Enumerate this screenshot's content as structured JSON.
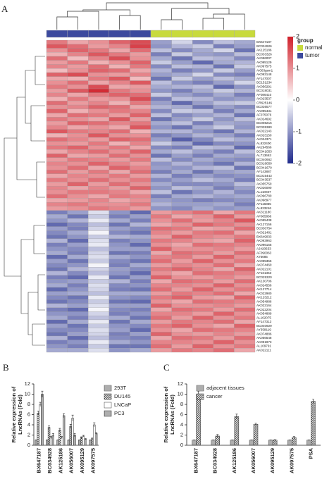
{
  "chart_data": [
    {
      "type": "heatmap",
      "panel_label": "A",
      "rows": [
        "BX647187",
        "BC034926",
        "AK125186",
        "BC033326",
        "AK056007",
        "AK095129",
        "AK097575",
        "AI003gsm1",
        "AK093148",
        "AF147007",
        "BC151234",
        "AK056291",
        "BC018031",
        "AF086410",
        "AK023537",
        "CR625146",
        "BC036577",
        "AK095431",
        "AF075076",
        "AK024692",
        "BC008215",
        "BC035380",
        "AK022143",
        "AK023150",
        "AK024371",
        "AL832400",
        "AK294566",
        "BC041053",
        "AL713663",
        "BC040662",
        "BC018050",
        "BC041670",
        "AF143887",
        "BC015443",
        "BC043537",
        "AK055750",
        "AK026090",
        "AL110037",
        "AK096780",
        "AK098977",
        "AF116865",
        "AL833246",
        "AK311180",
        "AF085866",
        "AK055438",
        "AK127156",
        "BC030754",
        "AK021481",
        "BX649033",
        "AK093963",
        "AK096155",
        "AJ420553",
        "AF090063",
        "X75685",
        "AK095356",
        "AK074460",
        "AK022101",
        "AF161353",
        "BC025320",
        "AK130706",
        "AK024556",
        "AK127714",
        "AK022980",
        "AK123212",
        "AK054986",
        "AK022164",
        "AK022204",
        "AK054889",
        "AL162075",
        "AF147313",
        "BC040929",
        "AY358119",
        "AK074886",
        "AK056548",
        "AK091973",
        "AL109791",
        "AK022111"
      ],
      "column_groups": [
        "tumor",
        "tumor",
        "tumor",
        "tumor",
        "tumor",
        "normal",
        "normal",
        "normal",
        "normal",
        "normal"
      ],
      "values": [
        [
          1.2,
          0.8,
          1.0,
          1.4,
          1.6,
          -0.9,
          -0.4,
          -1.1,
          -0.6,
          -0.8
        ],
        [
          1.5,
          1.3,
          0.9,
          1.1,
          1.7,
          -1.0,
          -0.7,
          -0.5,
          -1.2,
          -0.9
        ],
        [
          1.0,
          1.4,
          1.2,
          0.8,
          1.3,
          -0.6,
          -1.1,
          -0.8,
          -0.4,
          -1.3
        ],
        [
          0.7,
          1.1,
          1.5,
          1.2,
          0.9,
          -1.2,
          -0.5,
          -0.9,
          -1.0,
          -0.6
        ],
        [
          1.3,
          0.6,
          1.1,
          1.6,
          1.0,
          -0.8,
          -1.3,
          -0.6,
          -0.7,
          -1.1
        ],
        [
          0.9,
          1.2,
          0.7,
          1.0,
          1.4,
          -0.5,
          -0.9,
          -1.4,
          -0.8,
          -0.7
        ],
        [
          1.1,
          0.9,
          1.3,
          0.7,
          1.2,
          -1.1,
          -0.6,
          -0.7,
          -1.3,
          -0.5
        ],
        [
          0.6,
          1.0,
          1.4,
          1.3,
          0.8,
          -0.7,
          -1.2,
          -1.0,
          -0.5,
          -0.9
        ],
        [
          1.4,
          1.6,
          1.0,
          0.9,
          1.1,
          -0.9,
          -0.8,
          -0.4,
          -1.1,
          -1.2
        ],
        [
          0.8,
          0.7,
          1.2,
          1.5,
          0.6,
          -1.3,
          -0.5,
          -0.9,
          -0.6,
          -0.8
        ],
        [
          1.0,
          1.3,
          0.8,
          1.1,
          1.5,
          -0.6,
          -1.0,
          -1.2,
          -0.9,
          -0.4
        ],
        [
          1.2,
          1.0,
          1.6,
          0.8,
          0.9,
          -0.8,
          -0.7,
          -0.6,
          -1.4,
          -1.0
        ],
        [
          0.9,
          1.5,
          1.9,
          1.2,
          1.0,
          -1.0,
          -1.2,
          -0.8,
          -0.5,
          -0.7
        ],
        [
          1.1,
          0.8,
          1.2,
          1.4,
          1.3,
          -0.5,
          -0.9,
          -1.1,
          -0.8,
          -1.2
        ],
        [
          0.7,
          1.2,
          0.9,
          1.0,
          1.6,
          -1.2,
          -0.6,
          -0.7,
          -1.0,
          -0.9
        ],
        [
          1.3,
          0.9,
          1.1,
          0.7,
          1.2,
          -0.9,
          -1.4,
          -0.9,
          -0.6,
          -0.5
        ],
        [
          1.0,
          1.1,
          1.4,
          1.3,
          0.8,
          -0.7,
          -0.8,
          -1.3,
          -0.9,
          -1.1
        ],
        [
          1.4,
          0.7,
          1.0,
          1.2,
          1.1,
          -1.1,
          -0.5,
          -0.6,
          -1.2,
          -0.8
        ],
        [
          0.8,
          1.3,
          1.2,
          0.9,
          1.4,
          -0.6,
          -1.1,
          -0.9,
          -0.7,
          -1.3
        ],
        [
          1.2,
          1.0,
          0.8,
          1.5,
          0.9,
          -1.3,
          -0.9,
          -0.5,
          -1.0,
          -0.6
        ],
        [
          0.9,
          1.4,
          1.3,
          1.1,
          1.2,
          -0.8,
          -0.6,
          -1.2,
          -0.8,
          -0.9
        ],
        [
          1.1,
          0.8,
          1.0,
          0.8,
          1.5,
          -1.0,
          -1.3,
          -0.8,
          -0.5,
          -1.0
        ],
        [
          1.5,
          1.2,
          1.1,
          1.3,
          0.7,
          -0.7,
          -0.7,
          -1.0,
          -1.3,
          -0.7
        ],
        [
          0.7,
          1.0,
          1.5,
          1.0,
          1.0,
          -1.2,
          -1.0,
          -0.7,
          -0.9,
          -1.2
        ],
        [
          1.3,
          1.1,
          0.9,
          1.4,
          1.3,
          -0.9,
          -1.5,
          -1.1,
          -0.6,
          -0.8
        ],
        [
          1.0,
          0.9,
          1.2,
          0.7,
          1.1,
          -0.5,
          -0.8,
          -1.4,
          -1.1,
          -1.0
        ],
        [
          1.2,
          1.4,
          1.0,
          1.2,
          0.8,
          -1.1,
          -1.2,
          -0.6,
          -0.7,
          -1.4
        ],
        [
          0.8,
          1.1,
          1.3,
          1.0,
          1.4,
          -0.8,
          -0.6,
          -0.9,
          -1.2,
          -0.6
        ],
        [
          1.4,
          0.8,
          0.9,
          1.3,
          1.0,
          -1.3,
          -0.9,
          -1.2,
          -0.8,
          -0.9
        ],
        [
          0.9,
          1.2,
          1.1,
          0.9,
          1.2,
          -0.6,
          -1.1,
          -0.8,
          -1.0,
          -1.1
        ],
        [
          1.1,
          1.0,
          1.4,
          1.1,
          0.9,
          -1.0,
          -0.7,
          -1.0,
          -1.3,
          -0.7
        ],
        [
          1.0,
          1.3,
          0.8,
          1.4,
          1.1,
          -0.9,
          -1.0,
          -0.7,
          -0.6,
          -1.3
        ],
        [
          1.3,
          0.9,
          1.2,
          0.8,
          1.3,
          -1.2,
          -0.8,
          -1.3,
          -0.9,
          -0.8
        ],
        [
          0.8,
          1.1,
          1.0,
          1.2,
          0.9,
          -0.7,
          -1.2,
          -0.9,
          -1.1,
          -1.0
        ],
        [
          1.2,
          1.0,
          1.3,
          1.0,
          1.2,
          -1.1,
          -0.9,
          -0.6,
          -0.8,
          -1.2
        ],
        [
          0.9,
          1.4,
          0.9,
          1.3,
          1.0,
          -0.8,
          -1.1,
          -1.1,
          -1.0,
          -0.6
        ],
        [
          1.1,
          0.8,
          1.1,
          0.9,
          1.4,
          -1.0,
          -0.6,
          -0.8,
          -1.2,
          -0.9
        ],
        [
          1.0,
          1.2,
          1.2,
          1.1,
          0.8,
          -0.6,
          -1.3,
          -1.0,
          -0.7,
          -1.1
        ],
        [
          1.3,
          1.0,
          0.8,
          1.2,
          1.1,
          -1.2,
          -0.8,
          -0.7,
          -0.9,
          -0.8
        ],
        [
          0.8,
          0.9,
          1.1,
          0.8,
          1.0,
          -0.9,
          -1.0,
          -1.2,
          -1.1,
          -1.0
        ],
        [
          1.1,
          1.2,
          1.0,
          1.0,
          1.2,
          -0.7,
          -0.9,
          -0.9,
          -0.8,
          -1.2
        ],
        [
          0.9,
          1.0,
          1.2,
          1.1,
          0.9,
          -1.0,
          -1.1,
          -0.8,
          -1.0,
          -0.9
        ],
        [
          -1.2,
          -0.9,
          -0.3,
          -1.0,
          -1.4,
          0.9,
          1.1,
          1.3,
          0.8,
          1.2
        ],
        [
          -0.8,
          -1.3,
          -0.5,
          -1.2,
          -0.9,
          1.2,
          0.8,
          1.0,
          1.4,
          0.9
        ],
        [
          -1.0,
          -0.7,
          -0.2,
          -0.8,
          -1.2,
          1.0,
          1.3,
          0.9,
          1.1,
          1.5
        ],
        [
          -1.4,
          -1.1,
          -0.6,
          -1.3,
          -0.7,
          0.8,
          1.0,
          1.4,
          1.2,
          1.0
        ],
        [
          -0.9,
          -1.2,
          -0.4,
          -0.9,
          -1.1,
          1.3,
          1.2,
          0.8,
          0.9,
          1.3
        ],
        [
          -1.1,
          -0.8,
          -0.1,
          -1.1,
          -1.3,
          1.1,
          0.9,
          1.2,
          1.3,
          0.8
        ],
        [
          -1.3,
          -1.0,
          -0.5,
          -0.7,
          -0.8,
          0.9,
          1.4,
          1.1,
          1.0,
          1.2
        ],
        [
          -0.7,
          -1.4,
          -0.3,
          -1.2,
          -1.0,
          1.2,
          1.1,
          0.9,
          0.8,
          1.4
        ],
        [
          -1.2,
          -0.9,
          -0.2,
          -1.0,
          -1.4,
          1.0,
          0.8,
          1.3,
          1.2,
          1.1
        ],
        [
          -1.0,
          -1.1,
          -0.6,
          -0.9,
          -0.9,
          1.4,
          1.0,
          1.0,
          1.1,
          0.9
        ],
        [
          -0.8,
          -1.2,
          -0.4,
          -1.3,
          -1.2,
          0.8,
          1.3,
          1.2,
          0.9,
          1.3
        ],
        [
          -1.4,
          -0.8,
          -0.3,
          -0.8,
          -1.0,
          1.1,
          1.2,
          0.9,
          1.4,
          1.0
        ],
        [
          -0.9,
          -1.3,
          -0.5,
          -1.1,
          -1.3,
          1.3,
          0.9,
          1.4,
          1.0,
          1.2
        ],
        [
          -1.1,
          -1.0,
          -0.1,
          -1.2,
          -0.8,
          0.9,
          1.1,
          1.0,
          1.3,
          0.8
        ],
        [
          -1.3,
          -0.7,
          -0.4,
          -0.9,
          -1.1,
          1.2,
          1.4,
          1.1,
          0.8,
          1.4
        ],
        [
          -0.7,
          -1.1,
          -0.6,
          -1.0,
          -1.4,
          1.0,
          0.8,
          1.3,
          1.2,
          1.1
        ],
        [
          -1.2,
          -1.4,
          -0.2,
          -1.3,
          -0.9,
          1.4,
          1.0,
          0.9,
          1.1,
          0.9
        ],
        [
          -1.0,
          -0.9,
          -0.5,
          -0.7,
          -1.2,
          0.8,
          1.3,
          1.2,
          0.9,
          1.3
        ],
        [
          -0.8,
          -1.2,
          -0.3,
          -1.1,
          -1.0,
          1.1,
          1.1,
          1.0,
          1.4,
          1.0
        ],
        [
          -1.4,
          -1.0,
          -0.4,
          -1.2,
          -1.3,
          1.3,
          0.9,
          1.4,
          1.0,
          1.2
        ],
        [
          -0.9,
          -0.8,
          -0.6,
          -0.8,
          -0.8,
          0.9,
          1.2,
          1.1,
          1.3,
          0.8
        ],
        [
          -1.1,
          -1.3,
          -0.2,
          -1.0,
          -1.1,
          1.2,
          1.4,
          0.9,
          0.8,
          1.4
        ],
        [
          -1.3,
          -1.1,
          -0.5,
          -1.3,
          -1.4,
          1.0,
          0.8,
          1.3,
          1.2,
          1.1
        ],
        [
          -0.7,
          -0.9,
          -0.3,
          -0.9,
          -0.9,
          1.4,
          1.0,
          1.0,
          1.1,
          0.9
        ],
        [
          -1.2,
          -1.4,
          -0.1,
          -1.1,
          -1.2,
          0.8,
          1.3,
          1.2,
          0.9,
          1.3
        ],
        [
          -1.0,
          -1.0,
          -0.4,
          -1.2,
          -1.0,
          1.1,
          1.1,
          0.9,
          1.4,
          1.0
        ],
        [
          -0.8,
          -1.2,
          -0.6,
          -0.8,
          -1.3,
          1.3,
          0.9,
          1.4,
          1.0,
          1.2
        ],
        [
          -1.4,
          -0.8,
          -0.2,
          -1.3,
          -0.8,
          0.9,
          1.2,
          1.1,
          1.3,
          0.8
        ],
        [
          -0.9,
          -1.3,
          -0.5,
          -1.0,
          -1.1,
          1.2,
          1.4,
          1.0,
          0.8,
          1.4
        ],
        [
          -1.1,
          -1.1,
          -0.3,
          -0.9,
          -1.4,
          1.0,
          0.8,
          1.3,
          1.2,
          1.1
        ],
        [
          -1.3,
          -0.9,
          -0.4,
          -1.2,
          -0.9,
          1.4,
          1.0,
          0.9,
          1.1,
          0.9
        ],
        [
          -0.7,
          -1.4,
          -0.6,
          -1.1,
          -1.2,
          0.8,
          1.3,
          1.2,
          0.9,
          1.3
        ],
        [
          -1.2,
          -1.0,
          -0.2,
          -0.8,
          -1.0,
          1.1,
          1.1,
          1.0,
          1.4,
          1.0
        ],
        [
          -1.0,
          -1.2,
          -0.5,
          -1.3,
          -1.3,
          1.3,
          0.9,
          1.4,
          1.0,
          1.2
        ],
        [
          -0.8,
          -0.8,
          -0.3,
          -1.0,
          -0.8,
          0.9,
          1.2,
          1.1,
          1.3,
          0.8
        ]
      ],
      "zlim": [
        -2,
        2
      ],
      "zticks": [
        2,
        1,
        0,
        -1,
        -2
      ],
      "low_color": "#1f2a8c",
      "mid_color": "#ffffff",
      "high_color": "#d0202a",
      "legend": {
        "title": "group",
        "items": [
          {
            "name": "normal",
            "color": "#c8da3c"
          },
          {
            "name": "tumor",
            "color": "#3c4a9e"
          }
        ]
      }
    },
    {
      "type": "bar",
      "panel_label": "B",
      "ylabel": [
        "Relative expression of",
        "LncRNAs (Fold)"
      ],
      "categories": [
        "BX647187",
        "BC034928",
        "AK125186",
        "AK056007",
        "AK095129",
        "AK097575"
      ],
      "series": [
        {
          "name": "293T",
          "pattern": "horizontal",
          "values": [
            1,
            1,
            1,
            1,
            1,
            1
          ],
          "errors": [
            0.05,
            0.05,
            0.05,
            0.05,
            0.05,
            0.05
          ]
        },
        {
          "name": "DU145",
          "pattern": "cross",
          "values": [
            6.3,
            3.5,
            3,
            3.7,
            1.5,
            1.3
          ],
          "errors": [
            0.4,
            0.3,
            0.3,
            0.4,
            0.15,
            0.15
          ]
        },
        {
          "name": "LNCaP",
          "pattern": "none",
          "values": [
            8,
            1.5,
            1.5,
            5.3,
            1.8,
            4
          ],
          "errors": [
            0.4,
            0.2,
            0.2,
            0.6,
            0.15,
            0.4
          ]
        },
        {
          "name": "PC3",
          "pattern": "vertical",
          "values": [
            10,
            2,
            5.8,
            2,
            1.2,
            2.3
          ],
          "errors": [
            0.6,
            0.3,
            0.4,
            0.3,
            0.1,
            0.2
          ]
        }
      ],
      "ylim": [
        0,
        12
      ],
      "yticks": [
        0,
        2,
        4,
        6,
        8,
        10,
        12
      ],
      "legend": "upper right"
    },
    {
      "type": "bar",
      "panel_label": "C",
      "ylabel": [
        "Relative expression of",
        "LncRNAs (Fold)"
      ],
      "categories": [
        "BX647187",
        "BC034928",
        "AK125186",
        "AK056007",
        "AK095129",
        "AK097575",
        "PSA"
      ],
      "series": [
        {
          "name": "adjacent tissues",
          "pattern": "horizontal",
          "values": [
            1,
            1,
            1,
            1,
            1,
            1,
            1
          ],
          "errors": [
            0.05,
            0.05,
            0.05,
            0.05,
            0.05,
            0.05,
            0.05
          ]
        },
        {
          "name": "cancer",
          "pattern": "cross",
          "values": [
            10,
            1.8,
            5.6,
            4.1,
            1,
            1.5,
            8.6
          ],
          "errors": [
            0.6,
            0.3,
            0.5,
            0.2,
            0.1,
            0.2,
            0.4
          ]
        }
      ],
      "ylim": [
        0,
        12
      ],
      "yticks": [
        0,
        2,
        4,
        6,
        8,
        10,
        12
      ],
      "legend": "upper left"
    }
  ]
}
